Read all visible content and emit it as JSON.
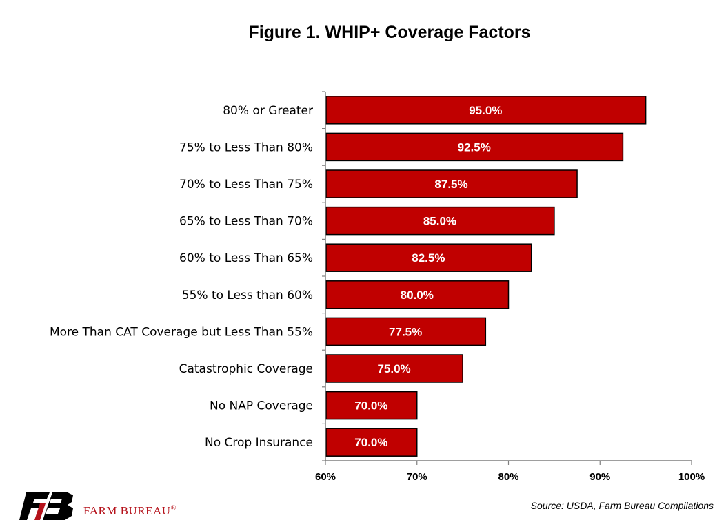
{
  "chart_data": {
    "type": "bar",
    "orientation": "horizontal",
    "title": "Figure 1. WHIP+ Coverage Factors",
    "categories": [
      "80% or Greater",
      "75% to Less Than 80%",
      "70% to Less Than 75%",
      "65% to Less Than 70%",
      "60% to Less Than 65%",
      "55% to Less than 60%",
      "More Than CAT Coverage but Less Than 55%",
      "Catastrophic Coverage",
      "No NAP Coverage",
      "No Crop Insurance"
    ],
    "values": [
      95.0,
      92.5,
      87.5,
      85.0,
      82.5,
      80.0,
      77.5,
      75.0,
      70.0,
      70.0
    ],
    "value_labels": [
      "95.0%",
      "92.5%",
      "87.5%",
      "85.0%",
      "82.5%",
      "80.0%",
      "77.5%",
      "75.0%",
      "70.0%",
      "70.0%"
    ],
    "xlim": [
      60,
      100
    ],
    "xticks": [
      60,
      70,
      80,
      90,
      100
    ],
    "xtick_labels": [
      "60%",
      "70%",
      "80%",
      "90%",
      "100%"
    ],
    "xlabel": "",
    "ylabel": "",
    "grid": false,
    "legend": "none",
    "bar_color": "#c00000",
    "bar_edge_color": "#000000"
  },
  "footer": {
    "source": "Source: USDA, Farm Bureau Compilations",
    "logo_text": "FARM BUREAU",
    "logo_mark": "®",
    "logo_color": "#b5121b"
  }
}
